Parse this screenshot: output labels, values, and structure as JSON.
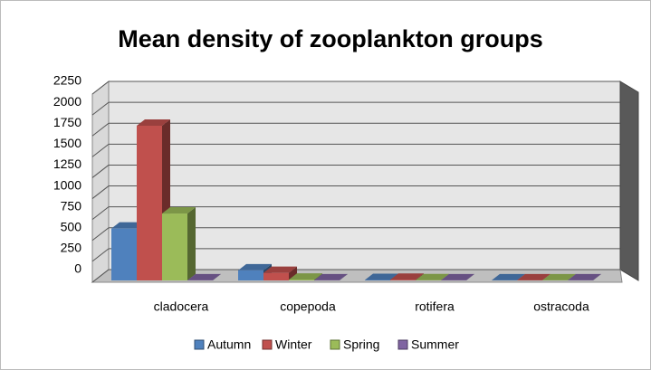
{
  "chart_data": {
    "type": "bar3d",
    "title": "Mean density of zooplankton groups",
    "categories": [
      "cladocera",
      "copepoda",
      "rotifera",
      "ostracoda"
    ],
    "series": [
      {
        "name": "Autumn",
        "color": "#4f81bd",
        "values": [
          620,
          120,
          5,
          2
        ]
      },
      {
        "name": "Winter",
        "color": "#c0504d",
        "values": [
          1850,
          90,
          8,
          2
        ]
      },
      {
        "name": "Spring",
        "color": "#9bbb59",
        "values": [
          800,
          10,
          3,
          1
        ]
      },
      {
        "name": "Summer",
        "color": "#8064a2",
        "values": [
          2,
          2,
          2,
          1
        ]
      }
    ],
    "ylim": [
      0,
      2250
    ],
    "yticks": [
      0,
      250,
      500,
      750,
      1000,
      1250,
      1500,
      1750,
      2000,
      2250
    ],
    "grid": true,
    "legend": "bottom"
  }
}
